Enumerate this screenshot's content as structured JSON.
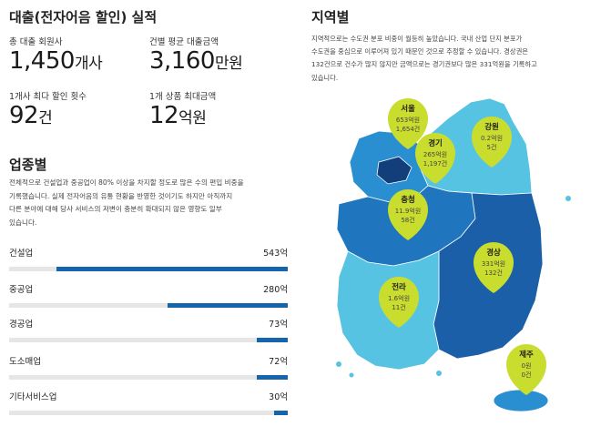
{
  "performance": {
    "title": "대출(전자어음 할인) 실적",
    "total_members_label": "총 대출 회원사",
    "total_members_value": "1,450",
    "total_members_unit": "개사",
    "avg_loan_label": "건별 평균 대출금액",
    "avg_loan_value": "3,160",
    "avg_loan_unit": "만원",
    "max_count_label": "1개사 최다 할인 횟수",
    "max_count_value": "92",
    "max_count_unit": "건",
    "max_amount_label": "1개 상품 최대금액",
    "max_amount_value": "12",
    "max_amount_unit": "억원"
  },
  "industry": {
    "title": "업종별",
    "description": [
      "전체적으로 건설업과 중공업이 80% 이상을 차지할 정도로 많은 수의 편입 비중을",
      "기록했습니다. 실제 전자어음의 유통 현황을 반영한 것이기도 하지만 아직까지",
      "다른 분야에 대해 당사 서비스의 저변이 충분히 확대되지 않은 영향도 일부",
      "있습니다."
    ],
    "rows": [
      {
        "name": "건설업",
        "amount": "543억",
        "share": 0.83
      },
      {
        "name": "중공업",
        "amount": "280억",
        "share": 0.43
      },
      {
        "name": "경공업",
        "amount": "73억",
        "share": 0.11
      },
      {
        "name": "도소매업",
        "amount": "72억",
        "share": 0.11
      },
      {
        "name": "기타서비스업",
        "amount": "30억",
        "share": 0.05
      }
    ]
  },
  "region": {
    "title": "지역별",
    "description": [
      "지역적으로는 수도권 분포 비중이 월등히 높았습니다. 국내 산업 단지 분포가",
      "수도권을 중심으로 이루어져 있기 때문인 것으로 추정할 수 있습니다.  경상권은",
      "132건으로 건수가 많지 않지만 금액으로는 경기권보다 많은 331억원을 기록하고",
      "있습니다."
    ],
    "pins": [
      {
        "name": "서울",
        "amount": "653억원",
        "count": "1,654건"
      },
      {
        "name": "경기",
        "amount": "265억원",
        "count": "1,197건"
      },
      {
        "name": "강원",
        "amount": "0.2억원",
        "count": "5건"
      },
      {
        "name": "충청",
        "amount": "11.9억원",
        "count": "58건"
      },
      {
        "name": "경상",
        "amount": "331억원",
        "count": "132건"
      },
      {
        "name": "전라",
        "amount": "1.6억원",
        "count": "11건"
      },
      {
        "name": "제주",
        "amount": "0원",
        "count": "0건"
      }
    ]
  },
  "colors": {
    "accent_bar": "#1565ad",
    "pin_fill": "#c9dd2e",
    "region_dark": "#1a5fa8",
    "region_mid": "#2a8fd0",
    "region_light": "#56c3e3"
  }
}
